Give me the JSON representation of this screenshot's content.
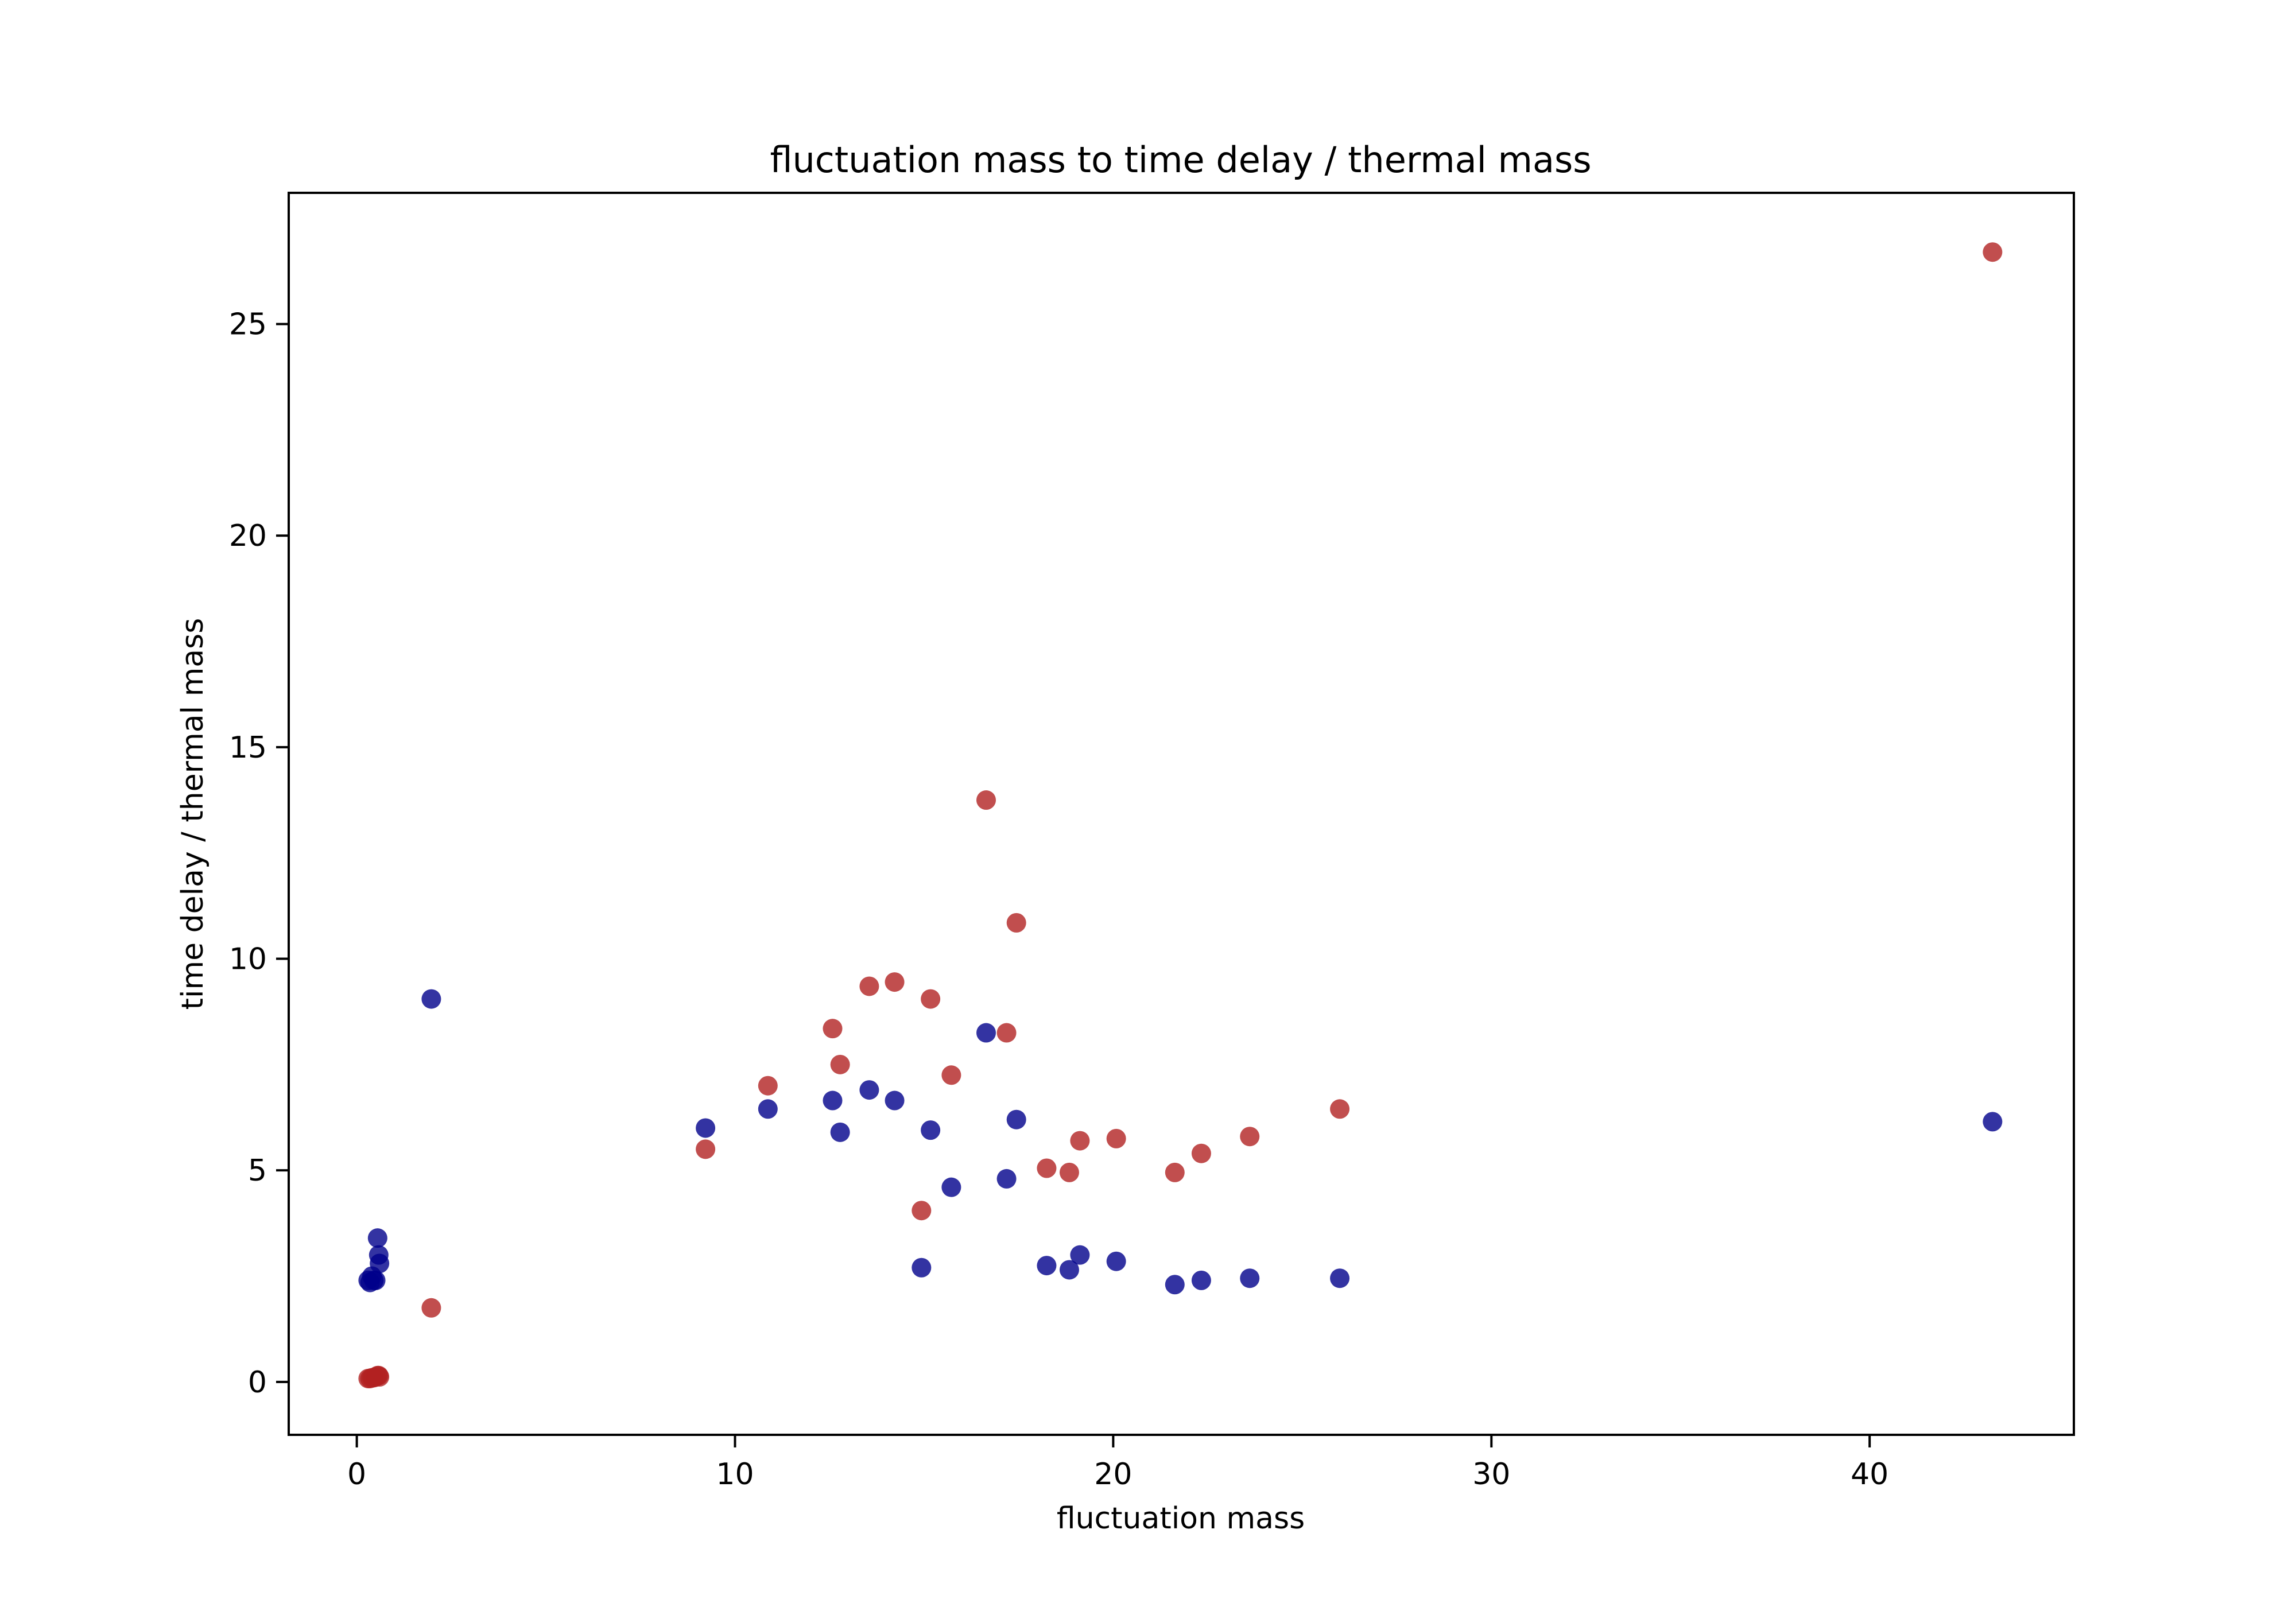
{
  "chart_data": {
    "type": "scatter",
    "title": "fluctuation mass to time delay / thermal mass",
    "xlabel": "fluctuation mass",
    "ylabel": "time delay / thermal mass",
    "xlim": [
      -1.8,
      45.4
    ],
    "ylim": [
      -1.25,
      28.1
    ],
    "xticks": [
      0,
      10,
      20,
      30,
      40
    ],
    "yticks": [
      0,
      5,
      10,
      15,
      20,
      25
    ],
    "grid": false,
    "legend": "none",
    "series": [
      {
        "color": "#00008b",
        "points": [
          [
            0.3,
            2.4
          ],
          [
            0.35,
            2.35
          ],
          [
            0.4,
            2.5
          ],
          [
            0.45,
            2.4
          ],
          [
            0.5,
            2.4
          ],
          [
            0.55,
            3.4
          ],
          [
            0.58,
            3.0
          ],
          [
            0.6,
            2.8
          ],
          [
            1.97,
            9.05
          ],
          [
            9.22,
            6.0
          ],
          [
            10.87,
            6.45
          ],
          [
            12.58,
            6.65
          ],
          [
            12.78,
            5.9
          ],
          [
            13.55,
            6.9
          ],
          [
            14.22,
            6.65
          ],
          [
            14.93,
            2.7
          ],
          [
            15.17,
            5.95
          ],
          [
            15.72,
            4.6
          ],
          [
            16.64,
            8.25
          ],
          [
            17.18,
            4.8
          ],
          [
            17.44,
            6.2
          ],
          [
            18.24,
            2.75
          ],
          [
            18.84,
            2.65
          ],
          [
            19.12,
            3.0
          ],
          [
            20.08,
            2.85
          ],
          [
            21.63,
            2.3
          ],
          [
            22.33,
            2.4
          ],
          [
            23.61,
            2.45
          ],
          [
            25.99,
            2.45
          ],
          [
            43.25,
            6.15
          ]
        ]
      },
      {
        "color": "#b22222",
        "points": [
          [
            0.3,
            0.08
          ],
          [
            0.35,
            0.08
          ],
          [
            0.4,
            0.1
          ],
          [
            0.45,
            0.1
          ],
          [
            0.5,
            0.12
          ],
          [
            0.55,
            0.15
          ],
          [
            0.58,
            0.15
          ],
          [
            0.6,
            0.12
          ],
          [
            1.97,
            1.75
          ],
          [
            9.22,
            5.5
          ],
          [
            10.87,
            7.0
          ],
          [
            12.58,
            8.35
          ],
          [
            12.78,
            7.5
          ],
          [
            13.55,
            9.35
          ],
          [
            14.22,
            9.45
          ],
          [
            14.93,
            4.05
          ],
          [
            15.17,
            9.05
          ],
          [
            15.72,
            7.25
          ],
          [
            16.64,
            13.75
          ],
          [
            17.18,
            8.25
          ],
          [
            17.44,
            10.85
          ],
          [
            18.24,
            5.05
          ],
          [
            18.84,
            4.95
          ],
          [
            19.12,
            5.7
          ],
          [
            20.08,
            5.75
          ],
          [
            21.63,
            4.95
          ],
          [
            22.33,
            5.4
          ],
          [
            23.61,
            5.8
          ],
          [
            25.99,
            6.45
          ],
          [
            43.25,
            26.7
          ]
        ]
      }
    ]
  }
}
